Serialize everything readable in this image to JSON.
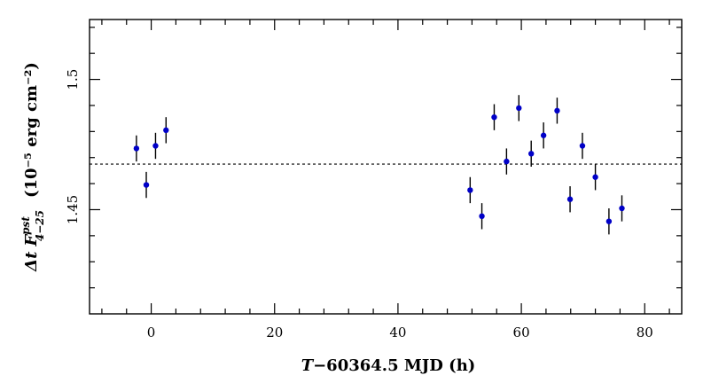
{
  "chart_data": {
    "type": "scatter",
    "xlabel_prefix": "T",
    "xlabel_main": "−60364.5 MJD (h)",
    "ylabel_delta": "Δt",
    "ylabel_F": "F",
    "ylabel_sup": "pst",
    "ylabel_sub": "4−25",
    "ylabel_units": "(10⁻⁵ erg cm⁻²)",
    "xlim": [
      -10,
      86
    ],
    "ylim": [
      1.41,
      1.523
    ],
    "x_ticks_labeled": [
      0,
      20,
      40,
      60,
      80
    ],
    "x_tick_labels": [
      "0",
      "20",
      "40",
      "60",
      "80"
    ],
    "y_ticks_labeled": [
      1.45,
      1.5
    ],
    "y_tick_labels": [
      "1.45",
      "1.5"
    ],
    "reference_line": 1.4675,
    "marker_color": "#0000c8",
    "points": [
      {
        "x": -2.4,
        "y": 1.4735,
        "err": 0.005
      },
      {
        "x": -0.8,
        "y": 1.4595,
        "err": 0.005
      },
      {
        "x": 0.7,
        "y": 1.4745,
        "err": 0.005
      },
      {
        "x": 2.4,
        "y": 1.4805,
        "err": 0.005
      },
      {
        "x": 51.7,
        "y": 1.4575,
        "err": 0.005
      },
      {
        "x": 53.6,
        "y": 1.4475,
        "err": 0.005
      },
      {
        "x": 55.6,
        "y": 1.4855,
        "err": 0.005
      },
      {
        "x": 57.6,
        "y": 1.4685,
        "err": 0.005
      },
      {
        "x": 59.6,
        "y": 1.489,
        "err": 0.005
      },
      {
        "x": 61.6,
        "y": 1.4715,
        "err": 0.005
      },
      {
        "x": 63.6,
        "y": 1.4785,
        "err": 0.005
      },
      {
        "x": 65.8,
        "y": 1.488,
        "err": 0.005
      },
      {
        "x": 67.9,
        "y": 1.454,
        "err": 0.005
      },
      {
        "x": 69.9,
        "y": 1.4745,
        "err": 0.005
      },
      {
        "x": 72.0,
        "y": 1.4625,
        "err": 0.005
      },
      {
        "x": 74.2,
        "y": 1.4455,
        "err": 0.005
      },
      {
        "x": 76.3,
        "y": 1.4505,
        "err": 0.005
      }
    ]
  }
}
